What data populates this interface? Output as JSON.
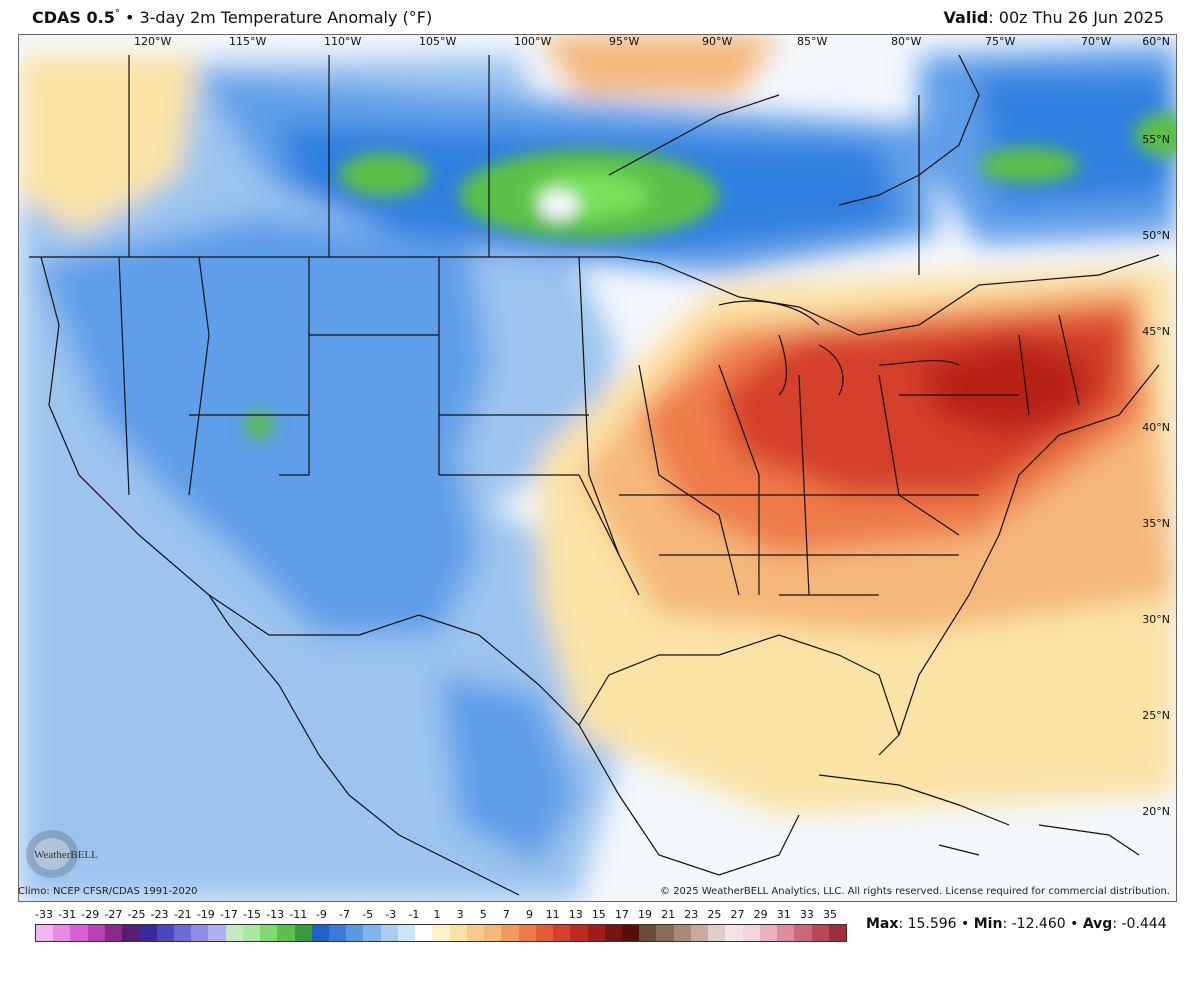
{
  "header": {
    "model": "CDAS 0.5",
    "degree_mark": "°",
    "bullet": "•",
    "product": "3-day 2m Temperature Anomaly (°F)",
    "valid_label": "Valid",
    "valid_time": ": 00z Thu 26 Jun 2025"
  },
  "map": {
    "lon_labels": [
      "120°W",
      "115°W",
      "110°W",
      "105°W",
      "100°W",
      "95°W",
      "90°W",
      "85°W",
      "80°W",
      "75°W",
      "70°W"
    ],
    "lat_labels": [
      "60°N",
      "55°N",
      "50°N",
      "45°N",
      "40°N",
      "35°N",
      "30°N",
      "25°N",
      "20°N"
    ],
    "anomaly_colors": {
      "very_cold": "#2f7fe0",
      "cold": "#5f9ee8",
      "cool": "#9cc4ef",
      "cold_green": "#5cbf4a",
      "bright_green": "#78e05a",
      "neutral": "#f4f8fd",
      "warm_light": "#fbe3a6",
      "warm": "#f5b77a",
      "hot": "#ee7a4a",
      "very_hot": "#d5402a",
      "extreme": "#b82418"
    }
  },
  "footer": {
    "climo": "Climo: NCEP CFSR/CDAS 1991-2020",
    "copyright": "© 2025 WeatherBELL Analytics, LLC. All rights reserved. License required for commercial distribution.",
    "logo_text": "WeatherBELL"
  },
  "colorbar": {
    "labels": [
      "-33",
      "-31",
      "-29",
      "-27",
      "-25",
      "-23",
      "-21",
      "-19",
      "-17",
      "-15",
      "-13",
      "-11",
      "-9",
      "-7",
      "-5",
      "-3",
      "-1",
      "1",
      "3",
      "5",
      "7",
      "9",
      "11",
      "13",
      "15",
      "17",
      "19",
      "21",
      "23",
      "25",
      "27",
      "29",
      "31",
      "33",
      "35"
    ],
    "colors": [
      "#f3b5f0",
      "#e889e6",
      "#d860d4",
      "#bb3fb5",
      "#8a2a8a",
      "#5a1c70",
      "#3a2a9a",
      "#4848c0",
      "#6a6ad8",
      "#8e8ee8",
      "#b0b0f0",
      "#c8e8c0",
      "#a8e8a0",
      "#80d870",
      "#5cbf4a",
      "#3a9a3a",
      "#2060c8",
      "#3a7ad8",
      "#5a98e4",
      "#80b4ec",
      "#a8cef4",
      "#cce4f8",
      "#ffffff",
      "#fdf2c8",
      "#fbe3a6",
      "#f8cc88",
      "#f5b77a",
      "#f29a60",
      "#ee7a4a",
      "#e25c38",
      "#d5402a",
      "#c02a1e",
      "#a01c14",
      "#7a140e",
      "#5a0e08",
      "#6a4a3a",
      "#8a6a5a",
      "#a88a7a",
      "#c8aaa0",
      "#e0ccc8",
      "#f4e4e8",
      "#f4d4dc",
      "#eab0bc",
      "#dc8c9c",
      "#cc6878",
      "#b84858",
      "#a02c3c"
    ]
  },
  "stats": {
    "max_label": "Max",
    "max_value": ": 15.596",
    "min_label": "Min",
    "min_value": ": -12.460",
    "avg_label": "Avg",
    "avg_value": ": -0.444",
    "sep": "•"
  }
}
